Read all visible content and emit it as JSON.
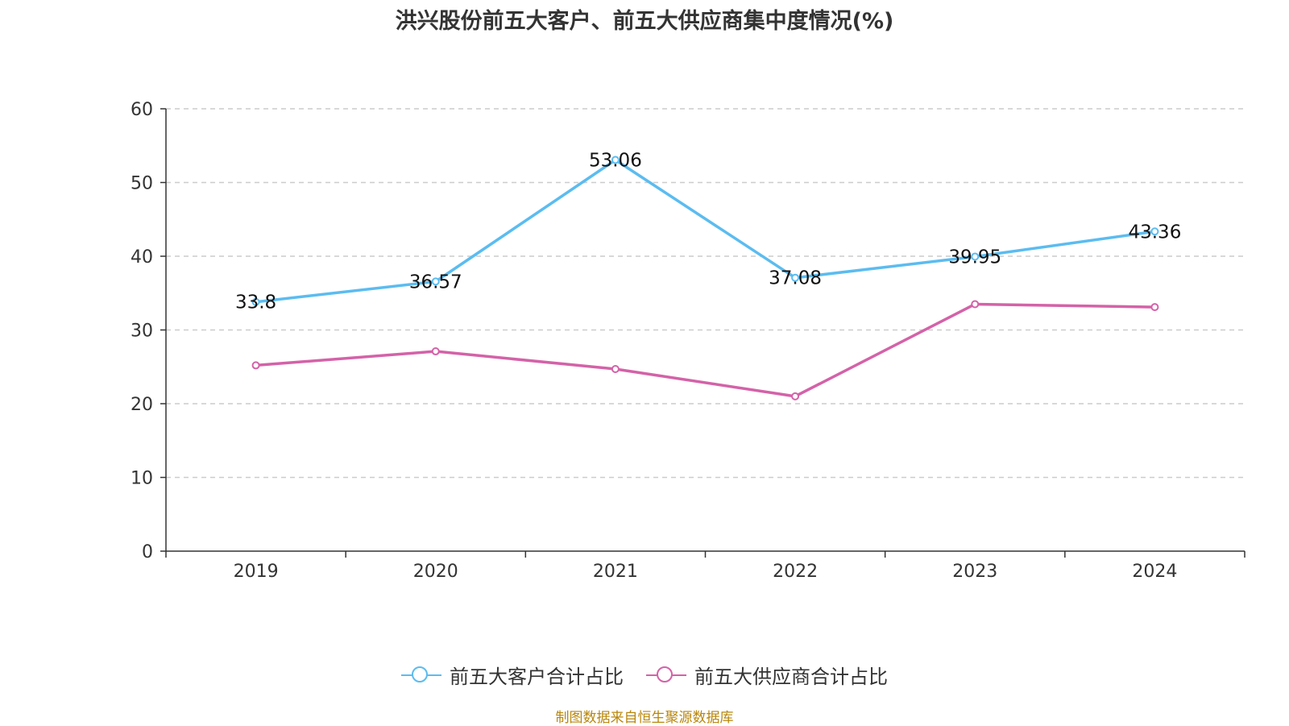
{
  "title": "洪兴股份前五大客户、前五大供应商集中度情况(%)",
  "source": "制图数据来自恒生聚源数据库",
  "chart_data": {
    "type": "line",
    "categories": [
      "2019",
      "2020",
      "2021",
      "2022",
      "2023",
      "2024"
    ],
    "ylim": [
      0,
      60
    ],
    "yticks": [
      0,
      10,
      20,
      30,
      40,
      50,
      60
    ],
    "grid": true,
    "legend": "bottom-center",
    "series": [
      {
        "name": "前五大客户合计占比",
        "color": "#5bbcf0",
        "values": [
          33.8,
          36.57,
          53.06,
          37.08,
          39.95,
          43.36
        ],
        "labels": [
          "33.8",
          "36.57",
          "53.06",
          "37.08",
          "39.95",
          "43.36"
        ]
      },
      {
        "name": "前五大供应商合计占比",
        "color": "#d462a8",
        "values": [
          25.2,
          27.1,
          24.7,
          21.0,
          33.5,
          33.1
        ]
      }
    ]
  }
}
